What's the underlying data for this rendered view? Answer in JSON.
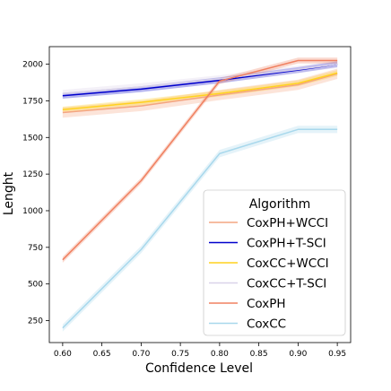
{
  "chart_data": {
    "type": "line",
    "xlabel": "Confidence Level",
    "ylabel": "Lenght",
    "x": [
      0.6,
      0.7,
      0.8,
      0.9,
      0.95
    ],
    "xticks": [
      0.6,
      0.65,
      0.7,
      0.75,
      0.8,
      0.85,
      0.9,
      0.95
    ],
    "xtick_labels": [
      "0.60",
      "0.65",
      "0.70",
      "0.75",
      "0.80",
      "0.85",
      "0.90",
      "0.95"
    ],
    "yticks": [
      250,
      500,
      750,
      1000,
      1250,
      1500,
      1750,
      2000
    ],
    "ytick_labels": [
      "250",
      "500",
      "750",
      "1000",
      "1250",
      "1500",
      "1750",
      "2000"
    ],
    "xlim": [
      0.583,
      0.967
    ],
    "ylim": [
      100,
      2120
    ],
    "grid": false,
    "legend": {
      "title": "Algorithm",
      "placement": "lower-right"
    },
    "series": [
      {
        "name": "CoxPH+WCCI",
        "color": "#f4a582",
        "values": [
          1670,
          1715,
          1790,
          1860,
          1935
        ],
        "band": 35
      },
      {
        "name": "CoxPH+T-SCI",
        "color": "#0000cc",
        "values": [
          1785,
          1830,
          1890,
          1960,
          2000
        ],
        "band": 20
      },
      {
        "name": "CoxCC+WCCI",
        "color": "#ffd21f",
        "values": [
          1690,
          1740,
          1800,
          1870,
          1940
        ],
        "band": 20
      },
      {
        "name": "CoxCC+T-SCI",
        "color": "#d9d2e9",
        "values": [
          1800,
          1845,
          1900,
          1965,
          2000
        ],
        "band": 25
      },
      {
        "name": "CoxPH",
        "color": "#f08060",
        "values": [
          665,
          1205,
          1885,
          2025,
          2025
        ],
        "band": 20
      },
      {
        "name": "CoxCC",
        "color": "#a8d8ec",
        "values": [
          200,
          735,
          1390,
          1555,
          1555
        ],
        "band": 25
      }
    ]
  }
}
